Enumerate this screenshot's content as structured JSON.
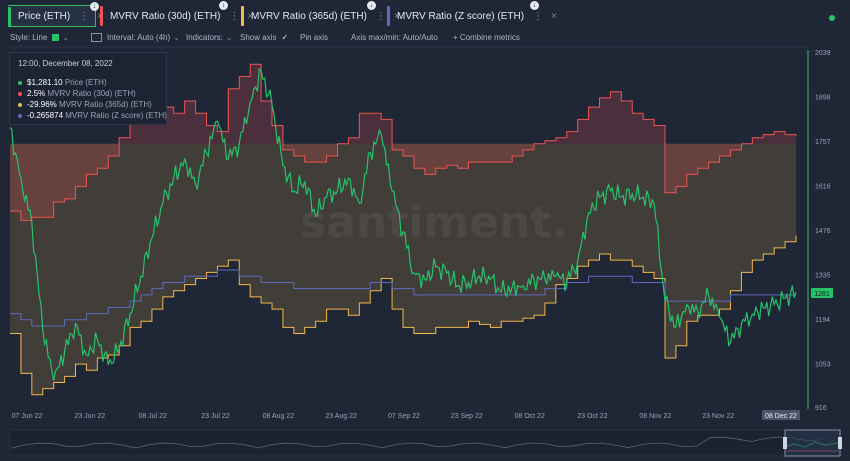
{
  "tabs": [
    {
      "label": "Price (ETH)",
      "color": "#26c36b",
      "active": true
    },
    {
      "label": "MVRV Ratio (30d) (ETH)",
      "color": "#ef5350",
      "active": false
    },
    {
      "label": "MVRV Ratio (365d) (ETH)",
      "color": "#f2b84b",
      "active": false
    },
    {
      "label": "MVRV Ratio (Z score) (ETH)",
      "color": "#5c6bc0",
      "active": false
    }
  ],
  "toolbar": {
    "style": "Style: Line",
    "interval": "Interval: Auto (4h)",
    "indicators": "Indicators:",
    "show_axis": "Show axis",
    "pin_axis": "Pin axis",
    "axis_minmax": "Axis max/min: Auto/Auto",
    "combine": "+ Combine metrics"
  },
  "tooltip": {
    "date": "12:00, December 08, 2022",
    "rows": [
      {
        "value": "$1,281.10",
        "name": "Price (ETH)",
        "color": "#26c36b"
      },
      {
        "value": "2.5%",
        "name": "MVRV Ratio (30d) (ETH)",
        "color": "#ef5350"
      },
      {
        "value": "-29.96%",
        "name": "MVRV Ratio (365d) (ETH)",
        "color": "#f2b84b"
      },
      {
        "value": "-0.265874",
        "name": "MVRV Ratio (Z score) (ETH)",
        "color": "#5c6bc0"
      }
    ]
  },
  "watermark": "santiment.",
  "chart_data": {
    "type": "line",
    "x_labels": [
      "07 Jun 22",
      "23 Jun 22",
      "08 Jul 22",
      "23 Jul 22",
      "08 Aug 22",
      "23 Aug 22",
      "07 Sep 22",
      "23 Sep 22",
      "08 Oct 22",
      "23 Oct 22",
      "08 Nov 22",
      "23 Nov 22",
      "08 Dec 22"
    ],
    "y_ticks": [
      "2039",
      "1898",
      "1757",
      "1616",
      "1476",
      "1335",
      "1194",
      "1053",
      "916"
    ],
    "ylim": [
      916,
      2039
    ],
    "current_price_label": "1281",
    "series": [
      {
        "name": "Price (ETH)",
        "color": "#26c36b",
        "values": [
          1800,
          1640,
          1500,
          1160,
          1000,
          1090,
          1180,
          1080,
          1130,
          1050,
          1100,
          1210,
          1330,
          1450,
          1560,
          1640,
          1700,
          1620,
          1720,
          1820,
          1700,
          1750,
          1880,
          1980,
          1870,
          1680,
          1600,
          1630,
          1520,
          1580,
          1600,
          1640,
          1560,
          1720,
          1780,
          1600,
          1470,
          1340,
          1320,
          1360,
          1340,
          1300,
          1310,
          1330,
          1320,
          1280,
          1295,
          1300,
          1320,
          1320,
          1330,
          1310,
          1380,
          1530,
          1580,
          1600,
          1580,
          1590,
          1580,
          1560,
          1250,
          1170,
          1240,
          1220,
          1270,
          1200,
          1120,
          1180,
          1210,
          1230,
          1240,
          1260,
          1280
        ]
      },
      {
        "name": "MVRV Ratio (30d) (ETH)",
        "color": "#ef5350",
        "area": true,
        "values": [
          -22,
          -25,
          -24,
          -24,
          -19,
          -18,
          -14,
          -10,
          -8,
          -4,
          2,
          18,
          25,
          22,
          12,
          10,
          14,
          10,
          6,
          4,
          18,
          22,
          26,
          14,
          6,
          -2,
          -4,
          -6,
          -6,
          -4,
          0,
          2,
          10,
          10,
          8,
          -2,
          -4,
          -8,
          -10,
          -8,
          -7,
          -8,
          -6,
          -6,
          -6,
          -6,
          -4,
          -2,
          0,
          1,
          2,
          4,
          8,
          12,
          15,
          17,
          14,
          10,
          8,
          6,
          -16,
          -14,
          -10,
          -8,
          -6,
          -4,
          -2,
          0,
          2,
          3,
          4,
          3,
          2.5
        ]
      },
      {
        "name": "MVRV Ratio (365d) (ETH)",
        "color": "#f2b84b",
        "area": true,
        "values": [
          -62,
          -75,
          -82,
          -80,
          -78,
          -76,
          -72,
          -74,
          -70,
          -69,
          -66,
          -60,
          -58,
          -54,
          -50,
          -48,
          -46,
          -44,
          -42,
          -40,
          -38,
          -46,
          -50,
          -52,
          -54,
          -60,
          -62,
          -60,
          -58,
          -54,
          -54,
          -56,
          -52,
          -48,
          -44,
          -54,
          -60,
          -62,
          -62,
          -60,
          -60,
          -60,
          -58,
          -59,
          -60,
          -58,
          -58,
          -57,
          -56,
          -52,
          -46,
          -44,
          -40,
          -38,
          -36,
          -38,
          -38,
          -40,
          -42,
          -44,
          -70,
          -66,
          -58,
          -56,
          -56,
          -54,
          -48,
          -42,
          -38,
          -36,
          -34,
          -32,
          -30
        ]
      },
      {
        "name": "MVRV Ratio (Z score) (ETH)",
        "color": "#5c6bc0",
        "values": [
          -0.3,
          -0.31,
          -0.32,
          -0.32,
          -0.32,
          -0.31,
          -0.31,
          -0.3,
          -0.3,
          -0.29,
          -0.29,
          -0.28,
          -0.27,
          -0.26,
          -0.25,
          -0.25,
          -0.24,
          -0.24,
          -0.24,
          -0.23,
          -0.23,
          -0.24,
          -0.24,
          -0.25,
          -0.25,
          -0.25,
          -0.26,
          -0.26,
          -0.26,
          -0.26,
          -0.26,
          -0.26,
          -0.26,
          -0.25,
          -0.25,
          -0.26,
          -0.26,
          -0.27,
          -0.27,
          -0.27,
          -0.27,
          -0.27,
          -0.27,
          -0.27,
          -0.27,
          -0.27,
          -0.27,
          -0.27,
          -0.27,
          -0.26,
          -0.26,
          -0.25,
          -0.25,
          -0.24,
          -0.24,
          -0.24,
          -0.24,
          -0.25,
          -0.25,
          -0.25,
          -0.28,
          -0.28,
          -0.28,
          -0.28,
          -0.28,
          -0.28,
          -0.27,
          -0.27,
          -0.27,
          -0.27,
          -0.27,
          -0.27,
          -0.27
        ]
      }
    ]
  }
}
